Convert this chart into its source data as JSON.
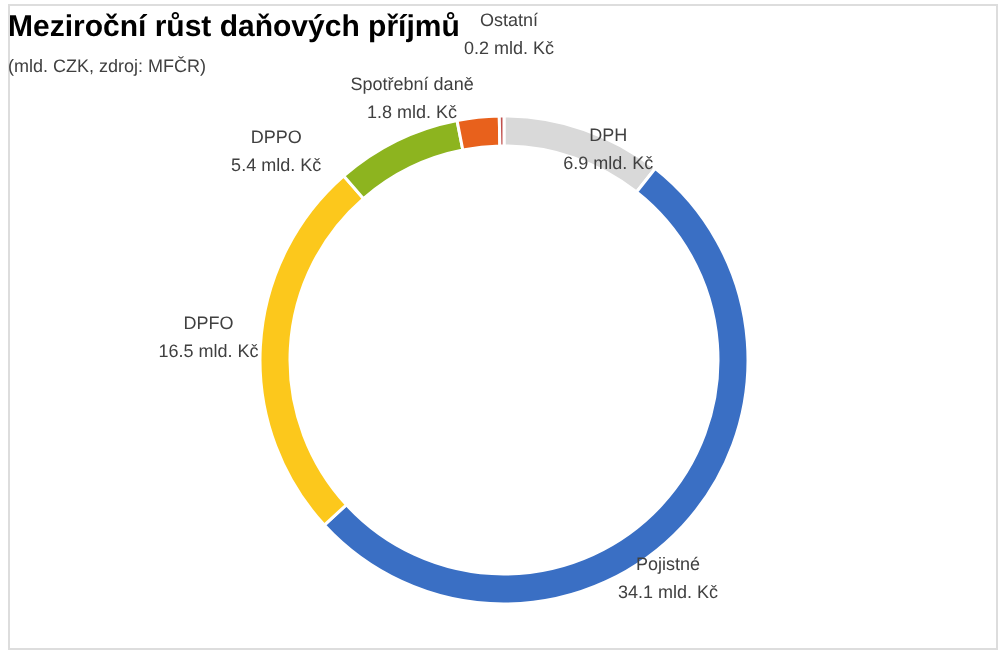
{
  "chart_data": {
    "type": "donut",
    "title": "Meziroční růst daňových příjmů",
    "subtitle": "(mld. CZK, zdroj: MFČR)",
    "categories": [
      "DPH",
      "Pojistné",
      "DPFO",
      "DPPO",
      "Spotřební daně",
      "Ostatní"
    ],
    "values": [
      6.9,
      34.1,
      16.5,
      5.4,
      1.8,
      0.2
    ],
    "value_labels": [
      "6.9 mld. Kč",
      "34.1 mld. Kč",
      "16.5 mld. Kč",
      "5.4 mld. Kč",
      "1.8 mld. Kč",
      "0.2 mld. Kč"
    ],
    "colors": [
      "#d9d9d9",
      "#3a6fc4",
      "#fcc81c",
      "#8db41f",
      "#e8611c",
      "#c0504d"
    ]
  }
}
